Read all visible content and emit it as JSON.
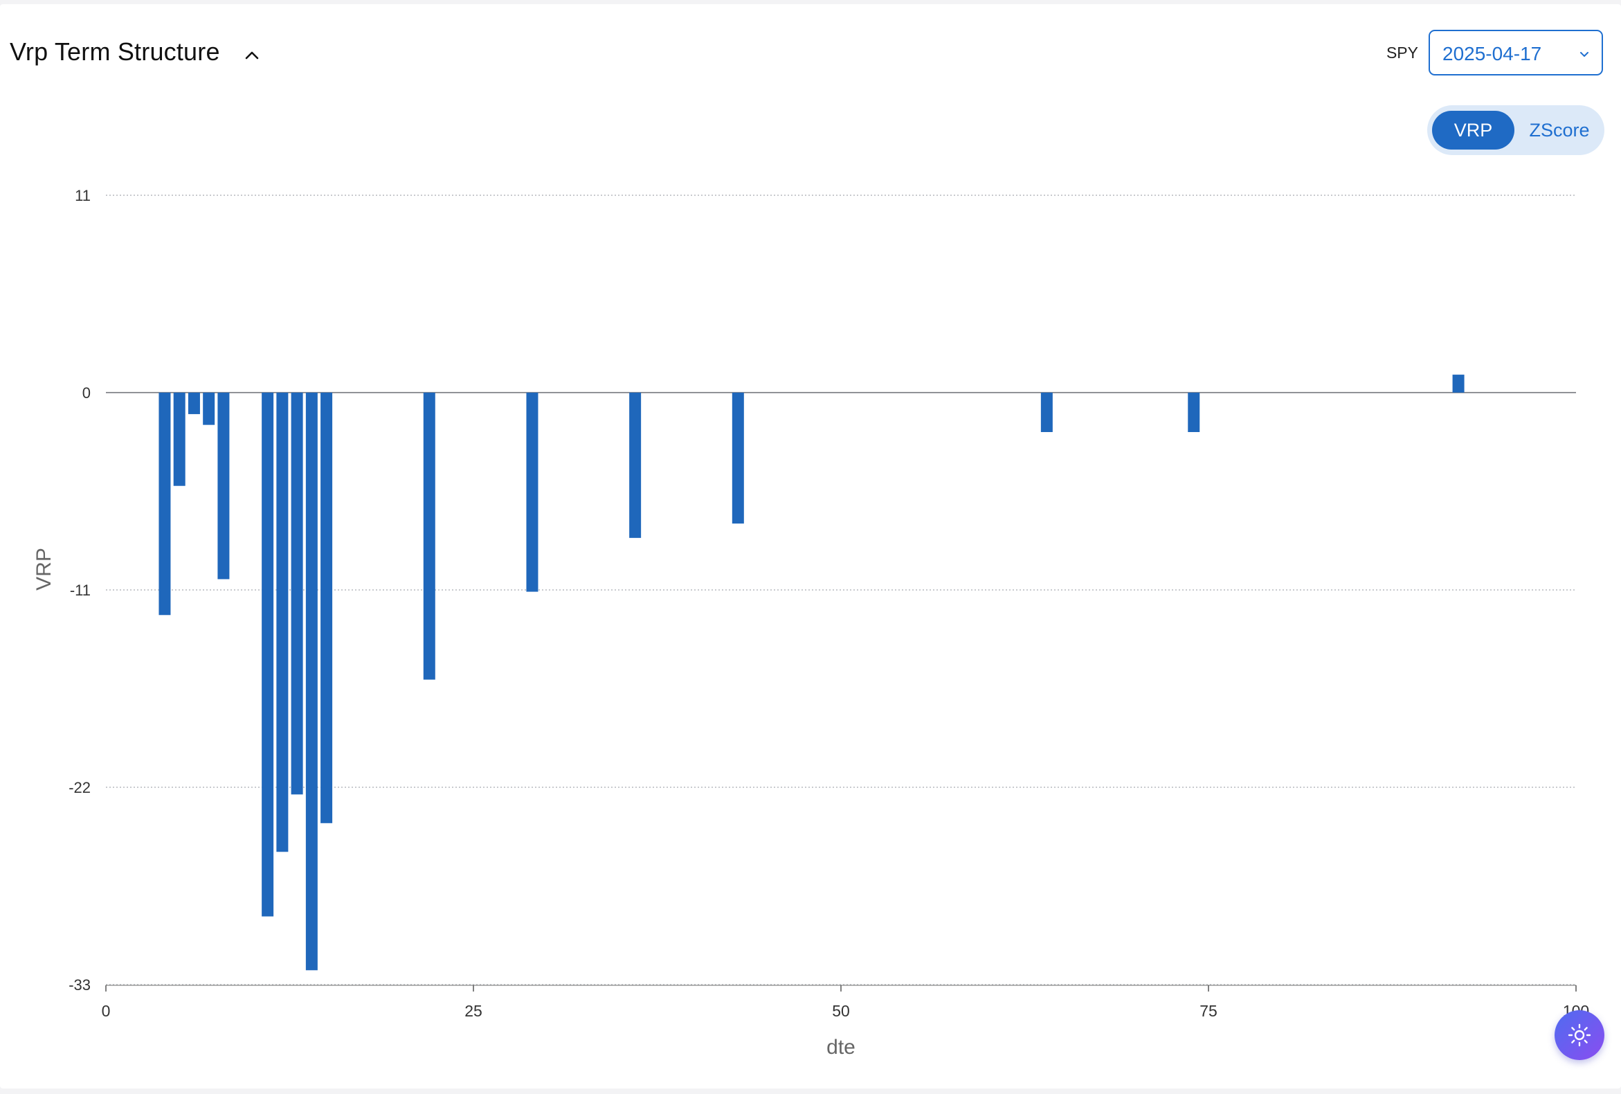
{
  "header": {
    "title": "Vrp Term Structure",
    "ticker": "SPY",
    "date_value": "2025-04-17"
  },
  "toggle": {
    "options": [
      "VRP",
      "ZScore"
    ],
    "selected": "VRP"
  },
  "icons": {
    "collapse": "chevron-up-icon",
    "dropdown": "chevron-down-icon",
    "theme": "sun-icon"
  },
  "colors": {
    "bar": "#1f67bb",
    "accent": "#1f6fd0"
  },
  "chart_data": {
    "type": "bar",
    "xlabel": "dte",
    "ylabel": "VRP",
    "xlim": [
      0,
      100
    ],
    "ylim": [
      -33,
      11
    ],
    "x_ticks": [
      0,
      25,
      50,
      75,
      100
    ],
    "y_ticks": [
      11,
      0,
      -11,
      -22,
      -33
    ],
    "grid": true,
    "x": [
      4,
      5,
      6,
      7,
      8,
      11,
      12,
      13,
      14,
      15,
      22,
      29,
      36,
      43,
      64,
      74,
      92
    ],
    "values": [
      -12.4,
      -5.2,
      -1.2,
      -1.8,
      -10.4,
      -29.2,
      -25.6,
      -22.4,
      -32.2,
      -24.0,
      -16.0,
      -11.1,
      -8.1,
      -7.3,
      -2.2,
      -2.2,
      1.0
    ]
  }
}
